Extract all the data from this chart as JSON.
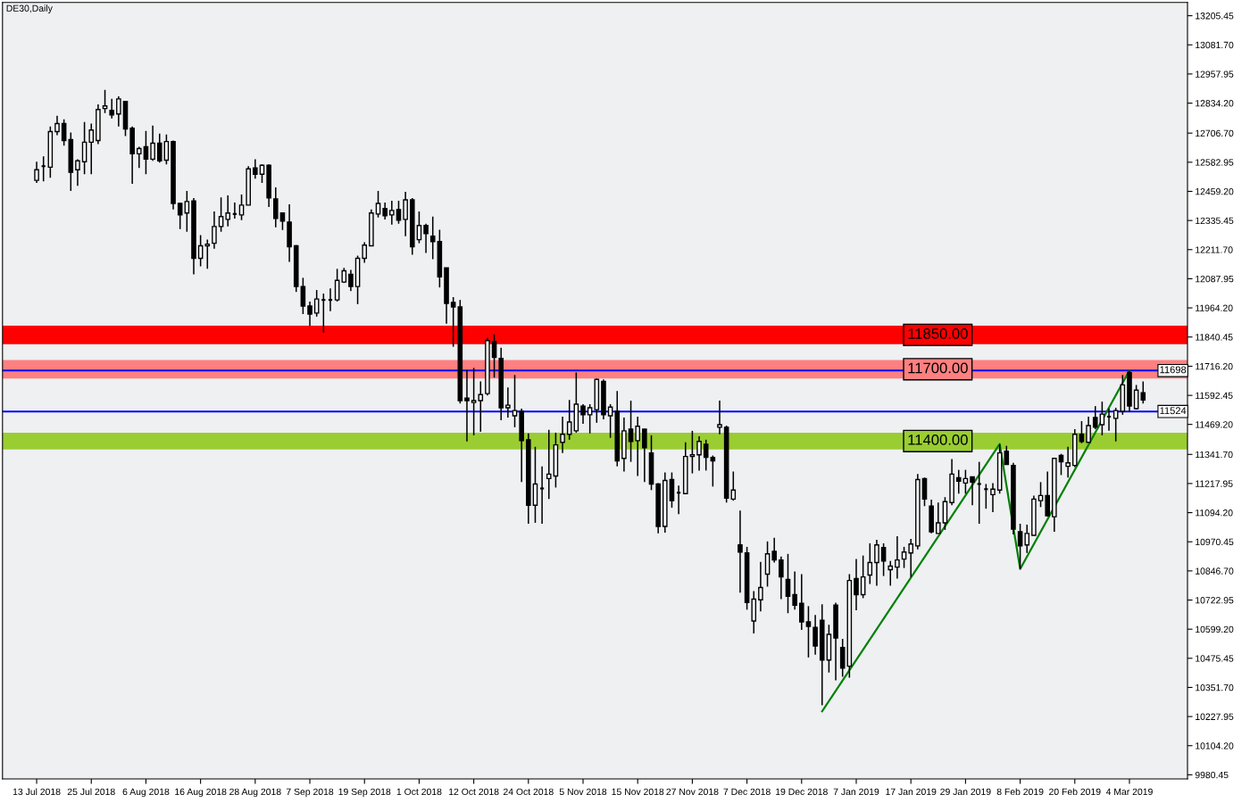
{
  "chart_data": {
    "type": "candlestick",
    "title": "DE30,Daily",
    "categories": [
      "13 Jul 2018",
      null,
      null,
      null,
      null,
      null,
      null,
      null,
      "25 Jul 2018",
      null,
      null,
      null,
      null,
      null,
      null,
      null,
      "6 Aug 2018",
      null,
      null,
      null,
      null,
      null,
      null,
      null,
      "16 Aug 2018",
      null,
      null,
      null,
      null,
      null,
      null,
      null,
      "28 Aug 2018",
      null,
      null,
      null,
      null,
      null,
      null,
      null,
      "7 Sep 2018",
      null,
      null,
      null,
      null,
      null,
      null,
      null,
      "19 Sep 2018",
      null,
      null,
      null,
      null,
      null,
      null,
      null,
      "1 Oct 2018",
      null,
      null,
      null,
      null,
      null,
      null,
      null,
      "12 Oct 2018",
      null,
      null,
      null,
      null,
      null,
      null,
      null,
      "24 Oct 2018",
      null,
      null,
      null,
      null,
      null,
      null,
      null,
      "5 Nov 2018",
      null,
      null,
      null,
      null,
      null,
      null,
      null,
      "15 Nov 2018",
      null,
      null,
      null,
      null,
      null,
      null,
      null,
      "27 Nov 2018",
      null,
      null,
      null,
      null,
      null,
      null,
      null,
      "7 Dec 2018",
      null,
      null,
      null,
      null,
      null,
      null,
      null,
      "19 Dec 2018",
      null,
      null,
      null,
      null,
      null,
      null,
      null,
      "7 Jan 2019",
      null,
      null,
      null,
      null,
      null,
      null,
      null,
      "17 Jan 2019",
      null,
      null,
      null,
      null,
      null,
      null,
      null,
      "29 Jan 2019",
      null,
      null,
      null,
      null,
      null,
      null,
      null,
      "8 Feb 2019",
      null,
      null,
      null,
      null,
      null,
      null,
      null,
      "20 Feb 2019",
      null,
      null,
      null,
      null,
      null,
      null,
      null,
      "4 Mar 2019",
      null,
      null
    ],
    "ohlc": [
      [
        12506,
        12585,
        12495,
        12551
      ],
      [
        12566,
        12608,
        12502,
        12566
      ],
      [
        12562,
        12735,
        12517,
        12713
      ],
      [
        12713,
        12780,
        12698,
        12747
      ],
      [
        12747,
        12765,
        12653,
        12675
      ],
      [
        12679,
        12709,
        12461,
        12540
      ],
      [
        12551,
        12596,
        12483,
        12589
      ],
      [
        12585,
        12754,
        12532,
        12668
      ],
      [
        12668,
        12747,
        12532,
        12720
      ],
      [
        12675,
        12829,
        12660,
        12807
      ],
      [
        12811,
        12890,
        12792,
        12822
      ],
      [
        12803,
        12852,
        12769,
        12784
      ],
      [
        12788,
        12863,
        12735,
        12852
      ],
      [
        12841,
        12844,
        12694,
        12724
      ],
      [
        12728,
        12735,
        12491,
        12619
      ],
      [
        12619,
        12649,
        12559,
        12641
      ],
      [
        12649,
        12716,
        12532,
        12596
      ],
      [
        12596,
        12739,
        12589,
        12664
      ],
      [
        12664,
        12705,
        12581,
        12589
      ],
      [
        12592,
        12701,
        12574,
        12671
      ],
      [
        12671,
        12675,
        12382,
        12408
      ],
      [
        12408,
        12412,
        12299,
        12359
      ],
      [
        12367,
        12461,
        12288,
        12416
      ],
      [
        12419,
        12431,
        12107,
        12175
      ],
      [
        12175,
        12273,
        12141,
        12228
      ],
      [
        12228,
        12254,
        12130,
        12235
      ],
      [
        12239,
        12374,
        12216,
        12310
      ],
      [
        12310,
        12434,
        12288,
        12352
      ],
      [
        12340,
        12442,
        12310,
        12367
      ],
      [
        12363,
        12412,
        12344,
        12363
      ],
      [
        12359,
        12446,
        12337,
        12401
      ],
      [
        12401,
        12566,
        12401,
        12555
      ],
      [
        12559,
        12596,
        12513,
        12532
      ],
      [
        12532,
        12574,
        12495,
        12570
      ],
      [
        12570,
        12574,
        12393,
        12431
      ],
      [
        12427,
        12476,
        12307,
        12344
      ],
      [
        12367,
        12367,
        12295,
        12333
      ],
      [
        12329,
        12404,
        12160,
        12224
      ],
      [
        12228,
        12231,
        12032,
        12055
      ],
      [
        12055,
        12092,
        11938,
        11972
      ],
      [
        11972,
        11991,
        11889,
        11938
      ],
      [
        11942,
        12040,
        11927,
        12002
      ],
      [
        11998,
        12025,
        11859,
        11998
      ],
      [
        11998,
        12047,
        11950,
        11998
      ],
      [
        11998,
        12130,
        11991,
        12081
      ],
      [
        12074,
        12134,
        12070,
        12122
      ],
      [
        12107,
        12126,
        12036,
        12055
      ],
      [
        12055,
        12186,
        11980,
        12175
      ],
      [
        12175,
        12243,
        12156,
        12231
      ],
      [
        12228,
        12382,
        12228,
        12367
      ],
      [
        12363,
        12461,
        12348,
        12408
      ],
      [
        12386,
        12412,
        12340,
        12356
      ],
      [
        12359,
        12419,
        12318,
        12378
      ],
      [
        12382,
        12419,
        12322,
        12337
      ],
      [
        12340,
        12457,
        12269,
        12423
      ],
      [
        12423,
        12431,
        12190,
        12224
      ],
      [
        12254,
        12374,
        12239,
        12314
      ],
      [
        12314,
        12322,
        12198,
        12280
      ],
      [
        12269,
        12352,
        12171,
        12246
      ],
      [
        12246,
        12296,
        12051,
        12096
      ],
      [
        12134,
        12134,
        11897,
        11983
      ],
      [
        11987,
        12010,
        11799,
        11968
      ],
      [
        11968,
        11998,
        11558,
        11570
      ],
      [
        11581,
        11701,
        11397,
        11570
      ],
      [
        11562,
        11709,
        11423,
        11570
      ],
      [
        11570,
        11652,
        11438,
        11596
      ],
      [
        11600,
        11837,
        11592,
        11825
      ],
      [
        11822,
        11852,
        11668,
        11754
      ],
      [
        11750,
        11795,
        11487,
        11540
      ],
      [
        11540,
        11626,
        11498,
        11551
      ],
      [
        11506,
        11679,
        11457,
        11528
      ],
      [
        11525,
        11536,
        11224,
        11400
      ],
      [
        11404,
        11431,
        11047,
        11126
      ],
      [
        11126,
        11374,
        11051,
        11216
      ],
      [
        11197,
        11291,
        11047,
        11197
      ],
      [
        11239,
        11446,
        11152,
        11258
      ],
      [
        11250,
        11434,
        11201,
        11382
      ],
      [
        11393,
        11502,
        11348,
        11427
      ],
      [
        11427,
        11573,
        11404,
        11479
      ],
      [
        11442,
        11690,
        11434,
        11555
      ],
      [
        11547,
        11555,
        11472,
        11510
      ],
      [
        11510,
        11555,
        11431,
        11540
      ],
      [
        11532,
        11664,
        11476,
        11660
      ],
      [
        11652,
        11660,
        11491,
        11510
      ],
      [
        11506,
        11555,
        11412,
        11543
      ],
      [
        11525,
        11611,
        11291,
        11314
      ],
      [
        11325,
        11498,
        11269,
        11442
      ],
      [
        11449,
        11570,
        11310,
        11397
      ],
      [
        11400,
        11502,
        11250,
        11461
      ],
      [
        11449,
        11449,
        11224,
        11370
      ],
      [
        11348,
        11423,
        11190,
        11216
      ],
      [
        11216,
        11220,
        11006,
        11036
      ],
      [
        11036,
        11265,
        11009,
        11231
      ],
      [
        11235,
        11265,
        11115,
        11145
      ],
      [
        11179,
        11209,
        11088,
        11179
      ],
      [
        11175,
        11393,
        11175,
        11333
      ],
      [
        11333,
        11442,
        11261,
        11340
      ],
      [
        11340,
        11419,
        11273,
        11397
      ],
      [
        11385,
        11404,
        11273,
        11329
      ],
      [
        11329,
        11337,
        11205,
        11314
      ],
      [
        11457,
        11570,
        11427,
        11468
      ],
      [
        11457,
        11464,
        11137,
        11156
      ],
      [
        11152,
        11269,
        11145,
        11190
      ],
      [
        10957,
        11103,
        10754,
        10927
      ],
      [
        10923,
        10949,
        10682,
        10712
      ],
      [
        10634,
        10761,
        10581,
        10727
      ],
      [
        10724,
        10885,
        10675,
        10776
      ],
      [
        10833,
        10972,
        10780,
        10919
      ],
      [
        10930,
        10987,
        10882,
        10893
      ],
      [
        10893,
        10908,
        10727,
        10821
      ],
      [
        10810,
        10919,
        10667,
        10739
      ],
      [
        10746,
        10844,
        10682,
        10701
      ],
      [
        10709,
        10833,
        10596,
        10630
      ],
      [
        10630,
        10697,
        10479,
        10611
      ],
      [
        10607,
        10660,
        10491,
        10528
      ],
      [
        10637,
        10705,
        10276,
        10468
      ],
      [
        10468,
        10618,
        10415,
        10577
      ],
      [
        10701,
        10712,
        10382,
        10562
      ],
      [
        10521,
        10558,
        10397,
        10434
      ],
      [
        10442,
        10833,
        10393,
        10806
      ],
      [
        10814,
        10897,
        10679,
        10746
      ],
      [
        10746,
        10912,
        10731,
        10821
      ],
      [
        10829,
        10964,
        10791,
        10882
      ],
      [
        10882,
        10979,
        10784,
        10957
      ],
      [
        10946,
        10964,
        10825,
        10889
      ],
      [
        10852,
        10889,
        10784,
        10867
      ],
      [
        10863,
        10994,
        10814,
        10893
      ],
      [
        10897,
        10949,
        10859,
        10927
      ],
      [
        10923,
        10983,
        10821,
        10961
      ],
      [
        10953,
        11258,
        10938,
        11235
      ],
      [
        11239,
        11243,
        11122,
        11152
      ],
      [
        11122,
        11149,
        11006,
        11013
      ],
      [
        11006,
        11137,
        11006,
        11051
      ],
      [
        11051,
        11160,
        11021,
        11141
      ],
      [
        11137,
        11322,
        11126,
        11258
      ],
      [
        11243,
        11276,
        11175,
        11228
      ],
      [
        11220,
        11276,
        11175,
        11239
      ],
      [
        11246,
        11246,
        11126,
        11224
      ],
      [
        11216,
        11310,
        11047,
        11216
      ],
      [
        11194,
        11216,
        11111,
        11194
      ],
      [
        11171,
        11220,
        11096,
        11194
      ],
      [
        11190,
        11385,
        11175,
        11348
      ],
      [
        11355,
        11378,
        11299,
        11299
      ],
      [
        11295,
        11306,
        11002,
        11024
      ],
      [
        11013,
        11047,
        10855,
        10953
      ],
      [
        10957,
        11043,
        10923,
        11006
      ],
      [
        10998,
        11167,
        10998,
        11152
      ],
      [
        11145,
        11224,
        11118,
        11167
      ],
      [
        11167,
        11269,
        11077,
        11081
      ],
      [
        11077,
        11325,
        11013,
        11325
      ],
      [
        11337,
        11344,
        11254,
        11310
      ],
      [
        11291,
        11374,
        11243,
        11306
      ],
      [
        11295,
        11449,
        11288,
        11427
      ],
      [
        11427,
        11483,
        11389,
        11397
      ],
      [
        11393,
        11502,
        11393,
        11464
      ],
      [
        11498,
        11547,
        11449,
        11457
      ],
      [
        11468,
        11566,
        11423,
        11513
      ],
      [
        11502,
        11536,
        11442,
        11502
      ],
      [
        11495,
        11540,
        11397,
        11528
      ],
      [
        11525,
        11679,
        11510,
        11637
      ],
      [
        11690,
        11698,
        11524,
        11547
      ],
      [
        11536,
        11637,
        11532,
        11615
      ],
      [
        11604,
        11652,
        11558,
        11573
      ]
    ],
    "series": [
      {
        "type": "line",
        "color": "#008000",
        "values": [
          null,
          null,
          null,
          null,
          null,
          null,
          null,
          null,
          null,
          null,
          null,
          null,
          null,
          null,
          null,
          null,
          null,
          null,
          null,
          null,
          null,
          null,
          null,
          null,
          null,
          null,
          null,
          null,
          null,
          null,
          null,
          null,
          null,
          null,
          null,
          null,
          null,
          null,
          null,
          null,
          null,
          null,
          null,
          null,
          null,
          null,
          null,
          null,
          null,
          null,
          null,
          null,
          null,
          null,
          null,
          null,
          null,
          null,
          null,
          null,
          null,
          null,
          null,
          null,
          null,
          null,
          null,
          null,
          null,
          null,
          null,
          null,
          null,
          null,
          null,
          null,
          null,
          null,
          null,
          null,
          null,
          null,
          null,
          null,
          null,
          null,
          null,
          null,
          null,
          null,
          null,
          null,
          null,
          null,
          null,
          null,
          null,
          null,
          null,
          null,
          null,
          null,
          null,
          null,
          null,
          null,
          null,
          null,
          null,
          null,
          null,
          null,
          null,
          null,
          null,
          10250,
          null,
          null,
          null,
          null,
          null,
          null,
          null,
          null,
          null,
          null,
          null,
          null,
          null,
          null,
          null,
          null,
          null,
          null,
          null,
          null,
          null,
          null,
          null,
          null,
          null,
          11386,
          null,
          null,
          10855,
          null,
          null,
          null,
          null,
          null,
          null,
          null,
          null,
          null,
          null,
          null,
          null,
          null,
          null,
          null,
          11698,
          null,
          null
        ]
      }
    ],
    "ylim": [
      9963,
      13262
    ],
    "yticks": [
      13205.45,
      {
        "value": 13081.7,
        "label": "13081.70"
      },
      12957.95,
      {
        "value": 12834.2,
        "label": "12834.20"
      },
      {
        "value": 12706.7,
        "label": "12706.70"
      },
      12582.95,
      {
        "value": 12459.2,
        "label": "12459.20"
      },
      12335.45,
      {
        "value": 12211.7,
        "label": "12211.70"
      },
      12087.95,
      {
        "value": 11964.2,
        "label": "11964.20"
      },
      11840.45,
      {
        "value": 11716.2,
        "label": "11716.20"
      },
      11592.45,
      {
        "value": 11469.2,
        "label": "11469.20"
      },
      {
        "value": 11341.7,
        "label": "11341.70"
      },
      11217.95,
      {
        "value": 11094.2,
        "label": "11094.20"
      },
      10970.45,
      {
        "value": 10846.7,
        "label": "10846.70"
      },
      10722.95,
      {
        "value": 10599.2,
        "label": "10599.20"
      },
      10475.45,
      {
        "value": 10351.7,
        "label": "10351.70"
      },
      10227.95,
      {
        "value": 10104.2,
        "label": "10104.20"
      },
      9980.45
    ],
    "bands": [
      {
        "axis": "y",
        "from": 11810,
        "to": 11889,
        "label": "11850.00",
        "color": "#ff0000"
      },
      {
        "axis": "y",
        "from": 11664,
        "to": 11743,
        "label": "11700.00",
        "color": "#ff8080"
      },
      {
        "axis": "y",
        "from": 11363,
        "to": 11434,
        "label": "11400.00",
        "color": "#9acd32"
      }
    ],
    "ref_lines": [
      {
        "axis": "y",
        "value": 11698,
        "label": "11698",
        "color": "#0000ff"
      },
      {
        "axis": "y",
        "value": 11524,
        "label": "11524",
        "color": "#0000ff"
      }
    ]
  }
}
